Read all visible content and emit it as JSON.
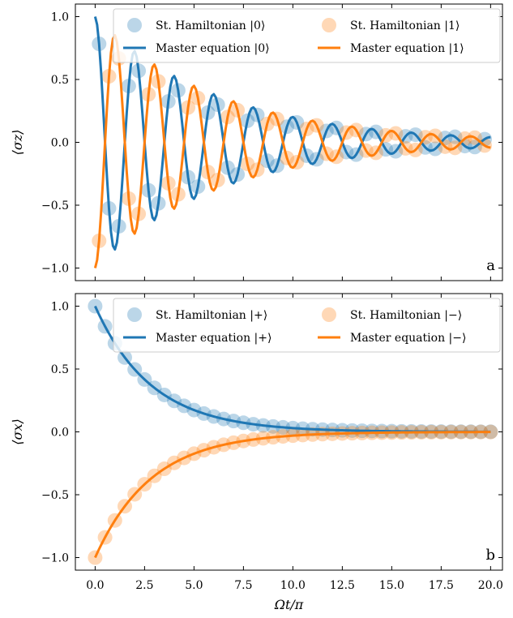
{
  "chart_data": [
    {
      "type": "line+scatter",
      "panel_tag": "a",
      "ylabel": "⟨σz⟩",
      "xlim": [
        -1.0,
        20.6
      ],
      "ylim": [
        -1.1,
        1.1
      ],
      "xticks": [
        0.0,
        2.5,
        5.0,
        7.5,
        10.0,
        12.5,
        15.0,
        17.5,
        20.0
      ],
      "yticks": [
        -1.0,
        -0.5,
        0.0,
        0.5,
        1.0
      ],
      "ytick_labels": [
        "−1.0",
        "−0.5",
        "0.0",
        "0.5",
        "1.0"
      ],
      "show_xtick_labels": false,
      "legend": {
        "placement": "top-right",
        "columns": 2
      },
      "series": [
        {
          "name": "St. Hamiltonian |0⟩",
          "kind": "scatter",
          "color": "#1f77b4",
          "model": {
            "amp": 1,
            "decay": 0.16,
            "freq": 0.5
          }
        },
        {
          "name": "St. Hamiltonian |1⟩",
          "kind": "scatter",
          "color": "#ff7f0e",
          "model": {
            "amp": -1,
            "decay": 0.16,
            "freq": 0.5
          }
        },
        {
          "name": "Master equation |0⟩",
          "kind": "line",
          "color": "#1f77b4",
          "model": {
            "amp": 1,
            "decay": 0.16,
            "freq": 0.5
          }
        },
        {
          "name": "Master equation |1⟩",
          "kind": "line",
          "color": "#ff7f0e",
          "model": {
            "amp": -1,
            "decay": 0.16,
            "freq": 0.5
          }
        }
      ],
      "scatter_x": [
        0.2,
        0.7,
        1.2,
        1.7,
        2.2,
        2.7,
        3.2,
        3.7,
        4.2,
        4.7,
        5.2,
        5.7,
        6.2,
        6.7,
        7.2,
        7.7,
        8.2,
        8.7,
        9.2,
        9.7,
        10.2,
        10.7,
        11.2,
        11.7,
        12.2,
        12.7,
        13.2,
        13.7,
        14.2,
        14.7,
        15.2,
        15.7,
        16.2,
        16.7,
        17.2,
        17.7,
        18.2,
        18.7,
        19.2,
        19.7
      ]
    },
    {
      "type": "line+scatter",
      "panel_tag": "b",
      "xlabel": "Ωt/π",
      "ylabel": "⟨σx⟩",
      "xlim": [
        -1.0,
        20.6
      ],
      "ylim": [
        -1.1,
        1.1
      ],
      "xticks": [
        0.0,
        2.5,
        5.0,
        7.5,
        10.0,
        12.5,
        15.0,
        17.5,
        20.0
      ],
      "xtick_labels": [
        "0.0",
        "2.5",
        "5.0",
        "7.5",
        "10.0",
        "12.5",
        "15.0",
        "17.5",
        "20.0"
      ],
      "yticks": [
        -1.0,
        -0.5,
        0.0,
        0.5,
        1.0
      ],
      "ytick_labels": [
        "−1.0",
        "−0.5",
        "0.0",
        "0.5",
        "1.0"
      ],
      "legend": {
        "placement": "top-right",
        "columns": 2
      },
      "series": [
        {
          "name": "St. Hamiltonian |+⟩",
          "kind": "scatter",
          "color": "#1f77b4",
          "model": {
            "amp": 1,
            "decay": 0.35
          }
        },
        {
          "name": "St. Hamiltonian |−⟩",
          "kind": "scatter",
          "color": "#ff7f0e",
          "model": {
            "amp": -1,
            "decay": 0.35
          }
        },
        {
          "name": "Master equation |+⟩",
          "kind": "line",
          "color": "#1f77b4",
          "model": {
            "amp": 1,
            "decay": 0.35
          }
        },
        {
          "name": "Master equation |−⟩",
          "kind": "line",
          "color": "#ff7f0e",
          "model": {
            "amp": -1,
            "decay": 0.35
          }
        }
      ],
      "scatter_x": [
        0.0,
        0.5,
        1.0,
        1.5,
        2.0,
        2.5,
        3.0,
        3.5,
        4.0,
        4.5,
        5.0,
        5.5,
        6.0,
        6.5,
        7.0,
        7.5,
        8.0,
        8.5,
        9.0,
        9.5,
        10.0,
        10.5,
        11.0,
        11.5,
        12.0,
        12.5,
        13.0,
        13.5,
        14.0,
        14.5,
        15.0,
        15.5,
        16.0,
        16.5,
        17.0,
        17.5,
        18.0,
        18.5,
        19.0,
        19.5,
        20.0
      ]
    }
  ]
}
